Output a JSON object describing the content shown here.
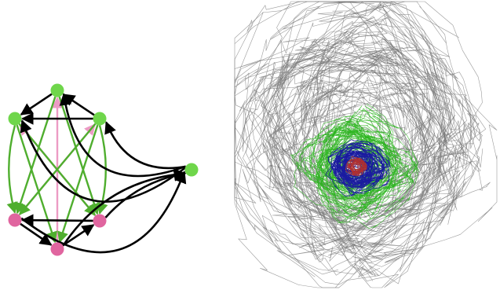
{
  "graph": {
    "colors": {
      "green_node": "#6fd64b",
      "pink_node": "#e0659f",
      "green_edge": "#4fae2e",
      "pink_edge": "#ec9bc4",
      "black_edge": "#000000"
    },
    "nodes": [
      {
        "id": "g_top",
        "color": "green"
      },
      {
        "id": "g_left",
        "color": "green"
      },
      {
        "id": "g_right",
        "color": "green"
      },
      {
        "id": "g_far",
        "color": "green"
      },
      {
        "id": "p_left",
        "color": "pink"
      },
      {
        "id": "p_right",
        "color": "pink"
      },
      {
        "id": "p_bottom",
        "color": "pink"
      }
    ],
    "edges": [
      {
        "from": "g_right",
        "to": "g_left",
        "color": "black"
      },
      {
        "from": "g_top",
        "to": "g_left",
        "color": "black"
      },
      {
        "from": "g_right",
        "to": "g_top",
        "color": "black"
      },
      {
        "from": "g_far",
        "to": "g_top",
        "color": "black"
      },
      {
        "from": "g_far",
        "to": "g_left",
        "color": "black"
      },
      {
        "from": "g_far",
        "to": "g_right",
        "color": "black"
      },
      {
        "from": "p_right",
        "to": "p_left",
        "color": "black"
      },
      {
        "from": "p_left",
        "to": "p_bottom",
        "color": "black"
      },
      {
        "from": "p_bottom",
        "to": "p_right",
        "color": "black"
      },
      {
        "from": "p_right",
        "to": "g_far",
        "color": "black"
      },
      {
        "from": "p_bottom",
        "to": "g_far",
        "color": "black"
      },
      {
        "from": "p_left",
        "to": "g_far",
        "color": "black"
      },
      {
        "from": "g_left",
        "to": "p_left",
        "color": "green"
      },
      {
        "from": "g_left",
        "to": "p_bottom",
        "color": "green"
      },
      {
        "from": "g_left",
        "to": "p_right",
        "color": "green"
      },
      {
        "from": "g_top",
        "to": "p_left",
        "color": "green"
      },
      {
        "from": "g_top",
        "to": "p_right",
        "color": "green"
      },
      {
        "from": "g_right",
        "to": "p_left",
        "color": "green"
      },
      {
        "from": "g_right",
        "to": "p_bottom",
        "color": "green"
      },
      {
        "from": "g_right",
        "to": "p_right",
        "color": "green"
      },
      {
        "from": "p_left",
        "to": "g_right",
        "color": "pink"
      },
      {
        "from": "p_right",
        "to": "g_left",
        "color": "pink"
      },
      {
        "from": "p_bottom",
        "to": "g_top",
        "color": "pink"
      }
    ]
  },
  "trajectory": {
    "colors": {
      "outer": "#7a7a7a",
      "middle": "#2bb51f",
      "inner": "#1a1aa0",
      "core": "#b03030"
    },
    "layers": [
      {
        "name": "outer",
        "color_key": "outer"
      },
      {
        "name": "middle",
        "color_key": "middle"
      },
      {
        "name": "inner",
        "color_key": "inner"
      },
      {
        "name": "core",
        "color_key": "core"
      }
    ]
  }
}
